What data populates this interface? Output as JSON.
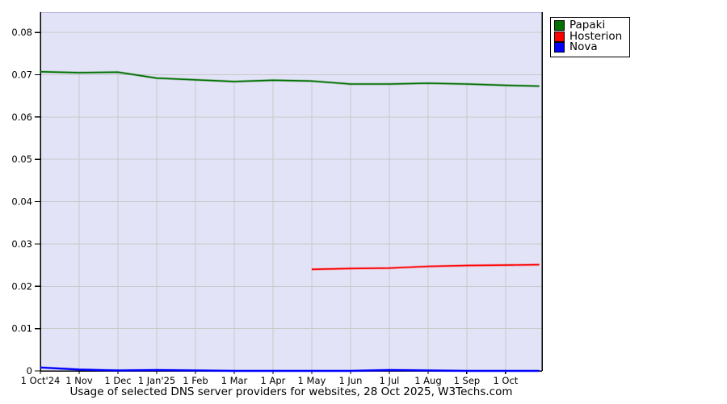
{
  "caption": "Usage of selected DNS server providers for websites, 28 Oct 2025, W3Techs.com",
  "colors": {
    "plot_background": "#e3e3f7",
    "plot_top_edge": "#b8b8dc",
    "grid": "#c8c8c8",
    "axis": "#000000",
    "text": "#000000"
  },
  "chart_data": {
    "type": "line",
    "title": "Usage of selected DNS server providers for websites, 28 Oct 2025, W3Techs.com",
    "xlabel": "",
    "ylabel": "",
    "xlim": [
      0,
      12.94
    ],
    "ylim": [
      0,
      0.0848
    ],
    "grid": true,
    "legend_position": "top-right-outside",
    "x_ticks": [
      {
        "pos": 0,
        "label": "1 Oct'24"
      },
      {
        "pos": 1,
        "label": "1 Nov"
      },
      {
        "pos": 2,
        "label": "1 Dec"
      },
      {
        "pos": 3,
        "label": "1 Jan'25"
      },
      {
        "pos": 4,
        "label": "1 Feb"
      },
      {
        "pos": 5,
        "label": "1 Mar"
      },
      {
        "pos": 6,
        "label": "1 Apr"
      },
      {
        "pos": 7,
        "label": "1 May"
      },
      {
        "pos": 8,
        "label": "1 Jun"
      },
      {
        "pos": 9,
        "label": "1 Jul"
      },
      {
        "pos": 10,
        "label": "1 Aug"
      },
      {
        "pos": 11,
        "label": "1 Sep"
      },
      {
        "pos": 12,
        "label": "1 Oct"
      }
    ],
    "y_ticks": [
      {
        "value": 0,
        "label": "0"
      },
      {
        "value": 0.01,
        "label": "0.01"
      },
      {
        "value": 0.02,
        "label": "0.02"
      },
      {
        "value": 0.03,
        "label": "0.03"
      },
      {
        "value": 0.04,
        "label": "0.04"
      },
      {
        "value": 0.05,
        "label": "0.05"
      },
      {
        "value": 0.06,
        "label": "0.06"
      },
      {
        "value": 0.07,
        "label": "0.07"
      },
      {
        "value": 0.08,
        "label": "0.08"
      }
    ],
    "series": [
      {
        "name": "Papaki",
        "color": "#007000",
        "x": [
          0,
          1,
          2,
          3,
          4,
          5,
          6,
          7,
          8,
          9,
          10,
          11,
          12,
          12.87
        ],
        "y": [
          0.0707,
          0.0705,
          0.0706,
          0.0692,
          0.0688,
          0.0684,
          0.0687,
          0.0685,
          0.0678,
          0.0678,
          0.068,
          0.0678,
          0.0675,
          0.0673
        ]
      },
      {
        "name": "Hosterion",
        "color": "#ff0000",
        "x": [
          7,
          8,
          9,
          10,
          11,
          12,
          12.87
        ],
        "y": [
          0.024,
          0.0242,
          0.0243,
          0.0247,
          0.0249,
          0.025,
          0.0251
        ]
      },
      {
        "name": "Nova",
        "color": "#0000ff",
        "x": [
          0,
          1,
          2,
          3,
          4,
          5,
          6,
          7,
          8,
          9,
          10,
          11,
          12,
          12.87
        ],
        "y": [
          0.0008,
          0.0003,
          0.0001,
          0.0002,
          0.0001,
          0,
          0,
          0,
          0,
          0.0002,
          0.0001,
          0,
          0,
          0
        ]
      }
    ]
  }
}
